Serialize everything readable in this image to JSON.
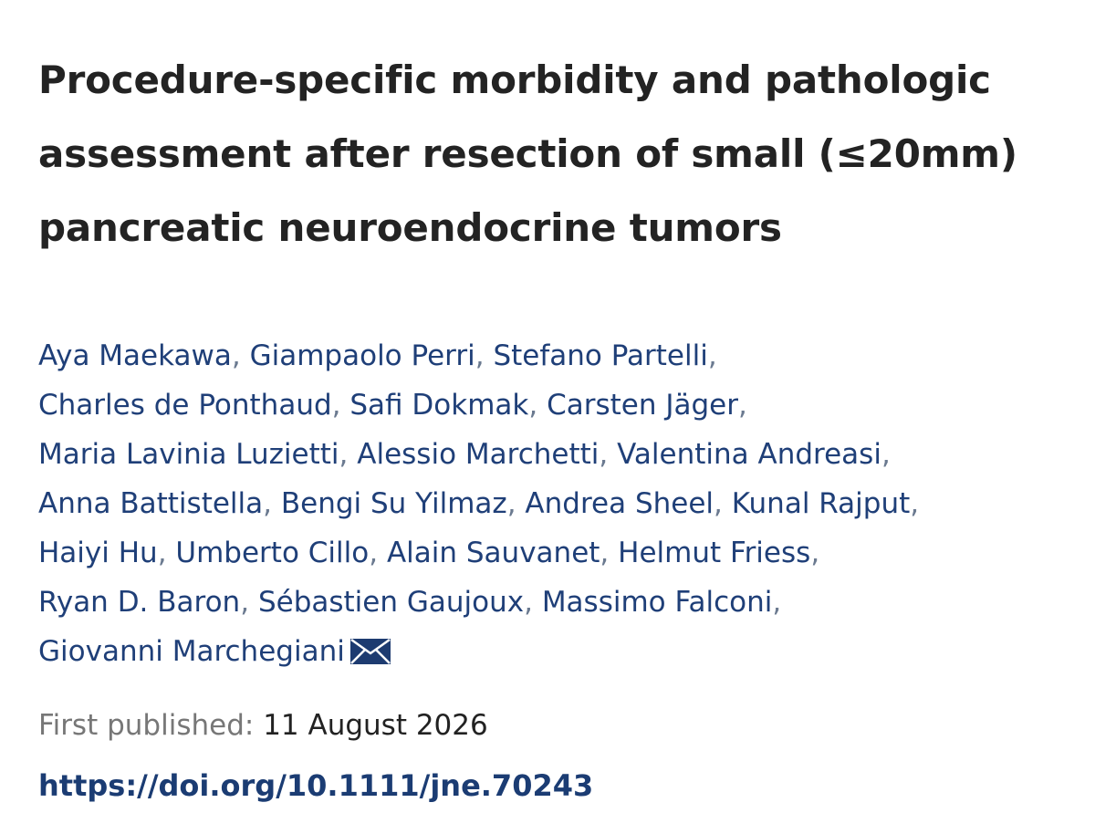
{
  "article": {
    "title_lines": [
      "Procedure-specific morbidity and pathologic",
      "assessment after resection of small (≤20mm)",
      "pancreatic neuroendocrine tumors"
    ],
    "authors": [
      "Aya Maekawa",
      "Giampaolo Perri",
      "Stefano Partelli",
      "Charles de Ponthaud",
      "Safi Dokmak",
      "Carsten Jäger",
      "Maria Lavinia Luzietti",
      "Alessio Marchetti",
      "Valentina Andreasi",
      "Anna Battistella",
      "Bengi Su Yilmaz",
      "Andrea Sheel",
      "Kunal Rajput",
      "Haiyi Hu",
      "Umberto Cillo",
      "Alain Sauvanet",
      "Helmut Friess",
      "Ryan D. Baron",
      "Sébastien Gaujoux",
      "Massimo Falconi",
      "Giovanni Marchegiani"
    ],
    "separator": ",",
    "corresponding_author_icon": "envelope-icon",
    "published_label": "First published:",
    "published_date": "11 August 2026",
    "doi": "https://doi.org/10.1111/jne.70243"
  },
  "colors": {
    "title": "#232323",
    "author_link": "#1f3f78",
    "separator": "#6b7a90",
    "label": "#777777",
    "doi": "#1b3c73",
    "icon": "#1d3b70"
  }
}
